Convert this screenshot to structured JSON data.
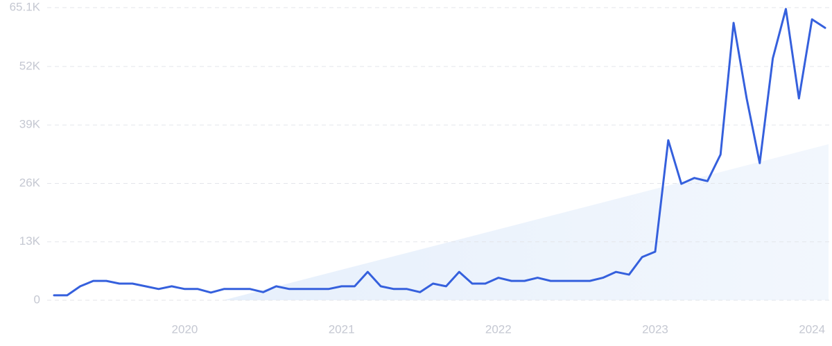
{
  "chart_data": {
    "type": "line",
    "categories": [
      null,
      null,
      null,
      null,
      null,
      null,
      null,
      null,
      null,
      null,
      "2020",
      null,
      null,
      null,
      null,
      null,
      null,
      null,
      null,
      null,
      null,
      null,
      "2021",
      null,
      null,
      null,
      null,
      null,
      null,
      null,
      null,
      null,
      null,
      null,
      "2022",
      null,
      null,
      null,
      null,
      null,
      null,
      null,
      null,
      null,
      null,
      null,
      "2023",
      null,
      null,
      null,
      null,
      null,
      null,
      null,
      null,
      null,
      null,
      null,
      "2024",
      null
    ],
    "series": [
      {
        "color": "#3560dd",
        "values": [
          1100,
          1100,
          3100,
          4300,
          4300,
          3700,
          3700,
          3100,
          2500,
          3100,
          2500,
          2500,
          1700,
          2500,
          2500,
          2500,
          1800,
          3100,
          2500,
          2500,
          2500,
          2500,
          3100,
          3100,
          6300,
          3100,
          2500,
          2500,
          1800,
          3700,
          3100,
          6300,
          3700,
          3700,
          5000,
          4300,
          4300,
          5000,
          4300,
          4300,
          4300,
          4300,
          5000,
          6300,
          5700,
          9600,
          10800,
          35600,
          25900,
          27200,
          26500,
          32400,
          61700,
          44900,
          30500,
          53800,
          64800,
          44900,
          62500,
          60600
        ]
      }
    ],
    "ylim": [
      0,
      65100
    ],
    "yticks": [
      0,
      {
        "value": 13000,
        "label": "13K"
      },
      {
        "value": 26000,
        "label": "26K"
      },
      {
        "value": 39000,
        "label": "39K"
      },
      {
        "value": 52000,
        "label": "52K"
      },
      {
        "value": 65100,
        "label": "65.1K"
      }
    ],
    "grid": true
  }
}
